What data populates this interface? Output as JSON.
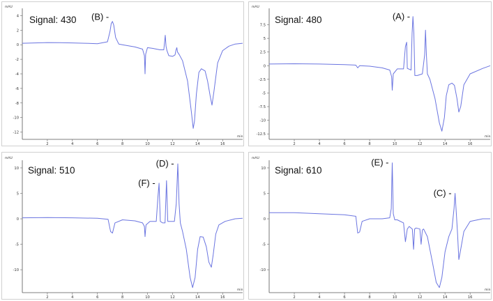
{
  "chart_data": [
    {
      "type": "line",
      "title": "Signal: 430",
      "ylabel": "mAU",
      "xlabel": "min",
      "ylim": [
        -13,
        5
      ],
      "yticks": [
        4,
        2,
        0,
        -2,
        -4,
        -6,
        -8,
        -10,
        -12
      ],
      "xlim": [
        0,
        17.6
      ],
      "xticks": [
        2,
        4,
        6,
        8,
        10,
        12,
        14,
        16
      ],
      "annotations": [
        {
          "label": "(B)",
          "x": 7.2,
          "y": 3.8
        }
      ],
      "series": [
        {
          "x": [
            0,
            1,
            2,
            3,
            4,
            5,
            6,
            6.8,
            7.0,
            7.1,
            7.2,
            7.3,
            7.45,
            7.7,
            8,
            9,
            9.6,
            9.75,
            9.8,
            9.85,
            10.0,
            10.4,
            11.0,
            11.3,
            11.42,
            11.48,
            11.55,
            11.7,
            12.0,
            12.2,
            12.28,
            12.34,
            12.4,
            12.55,
            12.8,
            13.2,
            13.5,
            13.65,
            13.75,
            13.9,
            14.1,
            14.3,
            14.6,
            14.8,
            15.0,
            15.15,
            15.3,
            15.6,
            16.0,
            16.5,
            17,
            17.6
          ],
          "y": [
            0.2,
            0.25,
            0.3,
            0.28,
            0.25,
            0.2,
            0.15,
            0.4,
            1.8,
            2.9,
            3.2,
            2.7,
            1.0,
            0.1,
            0.0,
            -0.3,
            -0.6,
            -1.5,
            -4.0,
            -1.3,
            -0.4,
            -0.5,
            -0.7,
            -0.7,
            1.3,
            -0.2,
            -0.8,
            -1.5,
            -1.6,
            -1.4,
            -0.7,
            -0.4,
            -1.0,
            -1.4,
            -2.2,
            -5.0,
            -9.2,
            -11.5,
            -10.5,
            -6.8,
            -3.8,
            -3.3,
            -3.6,
            -5.0,
            -7.0,
            -8.3,
            -6.5,
            -2.5,
            -0.8,
            -0.2,
            0.1,
            0.2
          ]
        }
      ]
    },
    {
      "type": "line",
      "title": "Signal: 480",
      "ylabel": "mAU",
      "xlabel": "min",
      "ylim": [
        -13.5,
        10.5
      ],
      "yticks": [
        7.5,
        5,
        2.5,
        0,
        -2.5,
        -5,
        -7.5,
        -10,
        -12.5
      ],
      "xlim": [
        0,
        17.6
      ],
      "xticks": [
        2,
        4,
        6,
        8,
        10,
        12,
        14,
        16
      ],
      "annotations": [
        {
          "label": "(A)",
          "x": 11.5,
          "y": 9.0
        }
      ],
      "series": [
        {
          "x": [
            0,
            2,
            4,
            6,
            6.9,
            7.05,
            7.2,
            8,
            9,
            9.6,
            9.75,
            9.8,
            9.88,
            10.2,
            10.7,
            10.85,
            10.95,
            11.0,
            11.1,
            11.3,
            11.38,
            11.45,
            11.52,
            11.6,
            11.8,
            12.2,
            12.38,
            12.45,
            12.52,
            12.6,
            12.8,
            13.2,
            13.55,
            13.75,
            13.95,
            14.1,
            14.3,
            14.55,
            14.75,
            14.95,
            15.1,
            15.25,
            15.5,
            16,
            17,
            17.6
          ],
          "y": [
            0.3,
            0.35,
            0.3,
            0.2,
            0.1,
            -0.4,
            0.0,
            -0.1,
            -0.4,
            -0.8,
            -2.0,
            -4.5,
            -1.5,
            -0.6,
            -0.6,
            3.5,
            4.3,
            -0.5,
            -0.6,
            -0.8,
            6.0,
            9.0,
            6.0,
            -1.8,
            -1.8,
            -1.5,
            2.0,
            6.5,
            2.0,
            -1.5,
            -2.5,
            -6.0,
            -10.5,
            -12.0,
            -9.5,
            -5.5,
            -3.5,
            -3.2,
            -3.6,
            -6.0,
            -8.5,
            -7.5,
            -3.5,
            -1.5,
            -0.5,
            0.0
          ]
        }
      ]
    },
    {
      "type": "line",
      "title": "Signal: 510",
      "ylabel": "mAU",
      "xlabel": "min",
      "ylim": [
        -14.5,
        11.5
      ],
      "yticks": [
        10,
        5,
        0,
        -5,
        -10
      ],
      "xlim": [
        0,
        17.6
      ],
      "xticks": [
        2,
        4,
        6,
        8,
        10,
        12,
        14,
        16
      ],
      "annotations": [
        {
          "label": "(F)",
          "x": 10.9,
          "y": 7.0
        },
        {
          "label": "(D)",
          "x": 12.4,
          "y": 10.8
        }
      ],
      "series": [
        {
          "x": [
            0,
            2,
            4,
            6,
            6.85,
            7.05,
            7.2,
            7.4,
            8,
            9,
            9.6,
            9.75,
            9.8,
            9.88,
            10.2,
            10.7,
            10.82,
            10.92,
            11.02,
            11.2,
            11.4,
            11.52,
            11.62,
            11.8,
            12.15,
            12.3,
            12.42,
            12.52,
            12.62,
            12.8,
            13.1,
            13.4,
            13.6,
            13.8,
            14.0,
            14.2,
            14.45,
            14.7,
            14.9,
            15.1,
            15.25,
            15.45,
            15.7,
            16.2,
            17,
            17.6
          ],
          "y": [
            0.2,
            0.25,
            0.2,
            0.1,
            -0.1,
            -2.5,
            -2.8,
            -0.8,
            -0.2,
            -0.4,
            -0.8,
            -1.5,
            -3.5,
            -1.2,
            -0.5,
            -0.5,
            4.0,
            7.0,
            -0.5,
            -0.8,
            -0.8,
            7.5,
            -0.5,
            -0.5,
            -0.5,
            3.0,
            10.8,
            3.0,
            -0.8,
            -2.5,
            -6.0,
            -11.5,
            -13.5,
            -11.5,
            -6.0,
            -3.5,
            -3.6,
            -5.5,
            -8.5,
            -9.5,
            -7.0,
            -3.0,
            -1.2,
            -0.5,
            0.0,
            0.1
          ]
        }
      ]
    },
    {
      "type": "line",
      "title": "Signal: 610",
      "ylabel": "mAU",
      "xlabel": "min",
      "ylim": [
        -14.5,
        11.5
      ],
      "yticks": [
        10,
        5,
        0,
        -5,
        -10
      ],
      "xlim": [
        0,
        17.6
      ],
      "xticks": [
        2,
        4,
        6,
        8,
        10,
        12,
        14,
        16
      ],
      "annotations": [
        {
          "label": "(E)",
          "x": 9.8,
          "y": 11.0
        },
        {
          "label": "(C)",
          "x": 14.8,
          "y": 5.0
        }
      ],
      "series": [
        {
          "x": [
            0,
            2,
            4,
            6,
            6.9,
            7.05,
            7.2,
            7.4,
            8,
            9,
            9.6,
            9.72,
            9.8,
            9.88,
            10.0,
            10.2,
            10.7,
            10.85,
            11.0,
            11.15,
            11.4,
            11.5,
            11.58,
            11.7,
            12.0,
            12.1,
            12.2,
            12.3,
            12.6,
            13.0,
            13.3,
            13.55,
            13.75,
            14.0,
            14.3,
            14.55,
            14.72,
            14.8,
            14.88,
            15.0,
            15.1,
            15.25,
            15.5,
            16,
            17,
            17.6
          ],
          "y": [
            1.2,
            1.2,
            1.0,
            0.8,
            0.5,
            -2.8,
            -2.6,
            -0.5,
            0.0,
            0.0,
            0.2,
            2.0,
            11.0,
            1.0,
            -0.2,
            -0.2,
            -0.8,
            -4.5,
            -2.0,
            -1.5,
            -2.0,
            -6.0,
            -2.0,
            -1.8,
            -2.0,
            -5.0,
            -2.2,
            -2.0,
            -3.5,
            -8.5,
            -12.5,
            -13.5,
            -11.5,
            -6.5,
            -3.5,
            -2.0,
            2.0,
            5.0,
            2.0,
            -3.0,
            -8.0,
            -6.0,
            -2.5,
            -0.5,
            0.0,
            0.0
          ]
        }
      ]
    }
  ]
}
